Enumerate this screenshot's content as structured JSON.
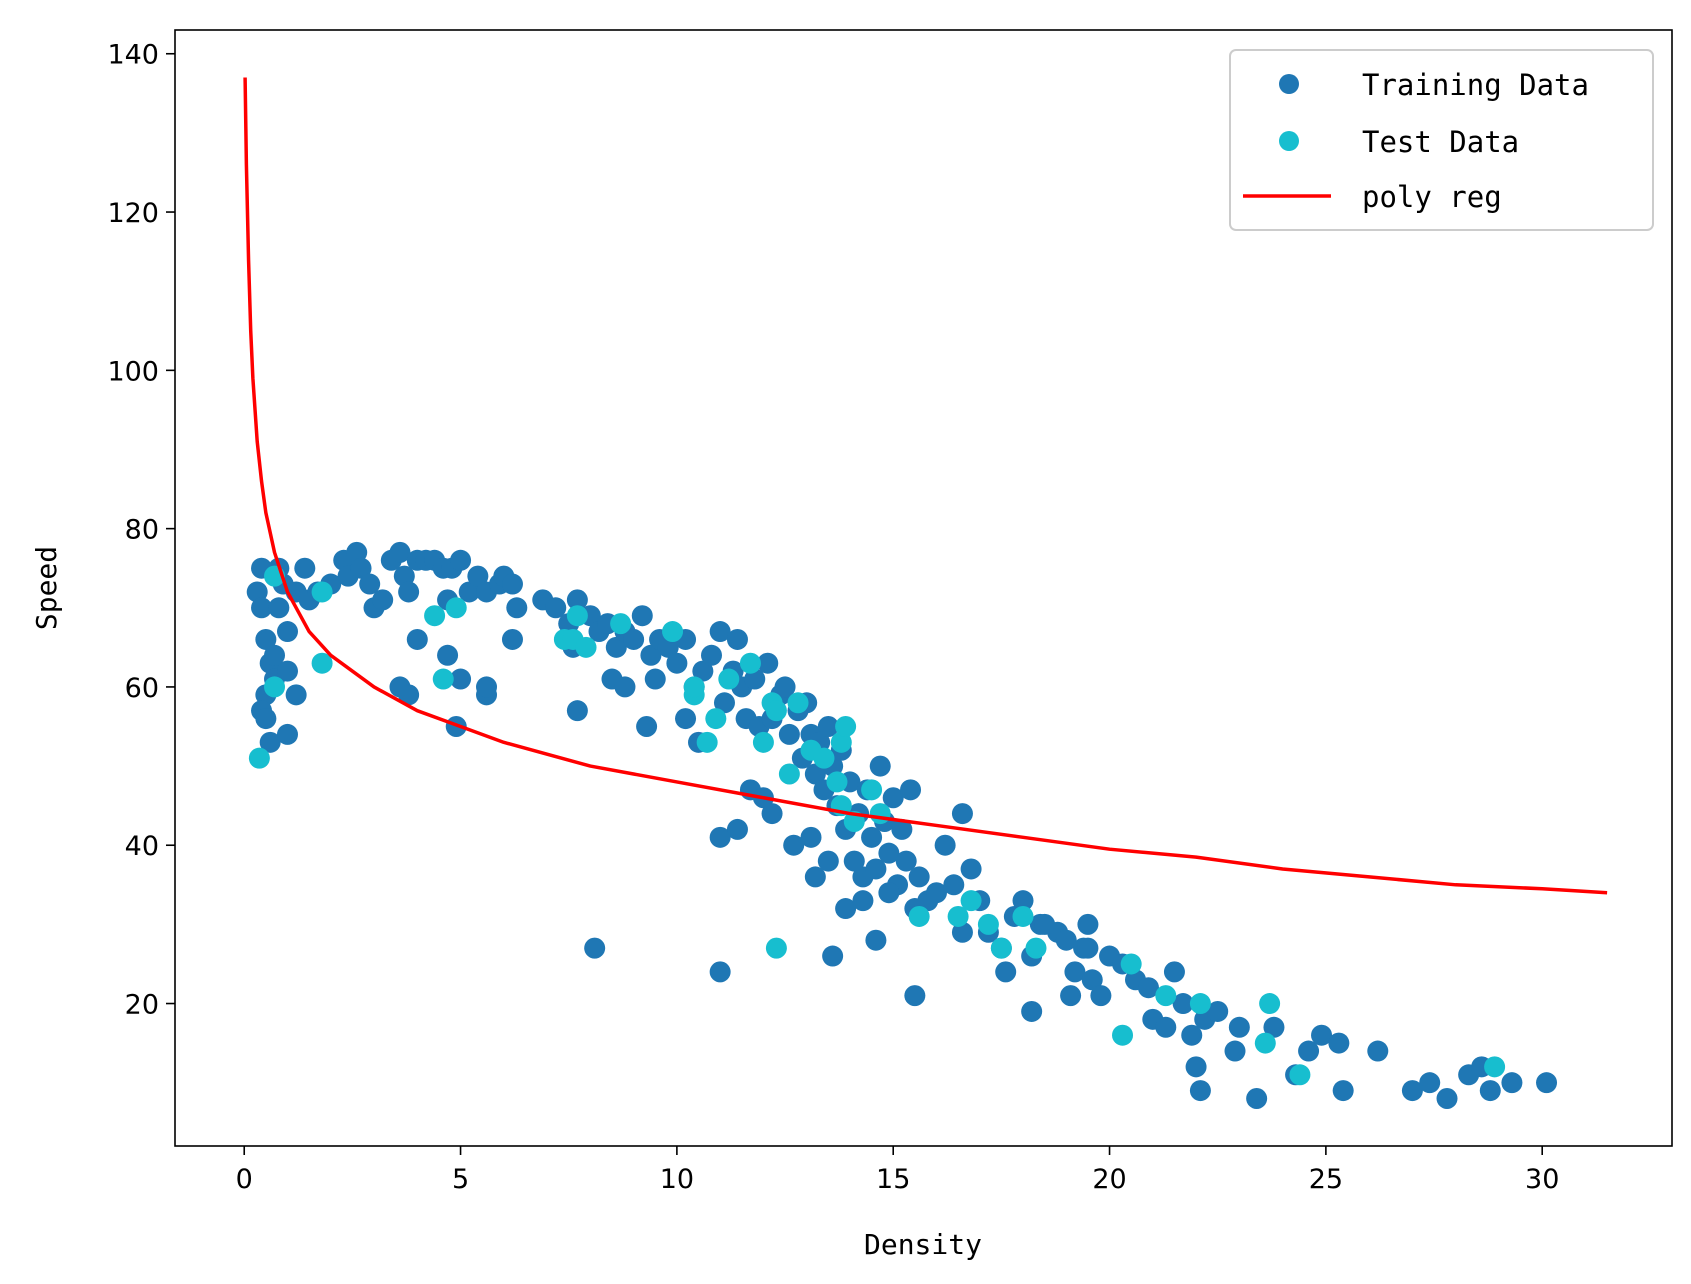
{
  "chart_data": {
    "type": "scatter",
    "title": "",
    "xlabel": "Density",
    "ylabel": "Speed",
    "xlim": [
      -1.6,
      33
    ],
    "ylim": [
      2,
      143
    ],
    "xticks": [
      0,
      5,
      10,
      15,
      20,
      25,
      30
    ],
    "yticks": [
      20,
      40,
      60,
      80,
      100,
      120,
      140
    ],
    "grid": false,
    "legend": {
      "position": "top-right",
      "entries": [
        "Training Data",
        "Test Data",
        "poly reg"
      ]
    },
    "colors": {
      "training": "#1f77b4",
      "test": "#17becf",
      "regression": "#ff0000"
    },
    "series": [
      {
        "name": "Training Data",
        "kind": "scatter",
        "points": [
          [
            0.3,
            72
          ],
          [
            0.4,
            75
          ],
          [
            0.4,
            70
          ],
          [
            0.5,
            66
          ],
          [
            0.5,
            59
          ],
          [
            0.4,
            57
          ],
          [
            0.5,
            56
          ],
          [
            0.6,
            63
          ],
          [
            0.6,
            53
          ],
          [
            0.7,
            64
          ],
          [
            0.7,
            61
          ],
          [
            0.8,
            75
          ],
          [
            0.8,
            70
          ],
          [
            0.9,
            73
          ],
          [
            1.0,
            62
          ],
          [
            1.0,
            67
          ],
          [
            1.0,
            54
          ],
          [
            1.2,
            59
          ],
          [
            1.2,
            72
          ],
          [
            1.4,
            75
          ],
          [
            1.5,
            71
          ],
          [
            1.7,
            72
          ],
          [
            2.0,
            73
          ],
          [
            2.3,
            76
          ],
          [
            2.4,
            74
          ],
          [
            2.6,
            77
          ],
          [
            2.7,
            75
          ],
          [
            2.9,
            73
          ],
          [
            3.0,
            70
          ],
          [
            3.2,
            71
          ],
          [
            3.4,
            76
          ],
          [
            3.6,
            77
          ],
          [
            3.7,
            74
          ],
          [
            3.8,
            72
          ],
          [
            4.0,
            76
          ],
          [
            4.2,
            76
          ],
          [
            4.4,
            76
          ],
          [
            4.6,
            75
          ],
          [
            4.7,
            71
          ],
          [
            4.8,
            75
          ],
          [
            5.0,
            76
          ],
          [
            5.2,
            72
          ],
          [
            5.4,
            74
          ],
          [
            5.6,
            72
          ],
          [
            5.9,
            73
          ],
          [
            6.0,
            74
          ],
          [
            6.2,
            73
          ],
          [
            6.3,
            70
          ],
          [
            6.9,
            71
          ],
          [
            7.2,
            70
          ],
          [
            7.5,
            68
          ],
          [
            7.6,
            65
          ],
          [
            7.7,
            71
          ],
          [
            8.0,
            69
          ],
          [
            8.2,
            67
          ],
          [
            8.4,
            68
          ],
          [
            8.6,
            65
          ],
          [
            8.8,
            67
          ],
          [
            9.0,
            66
          ],
          [
            9.2,
            69
          ],
          [
            9.4,
            64
          ],
          [
            9.5,
            61
          ],
          [
            9.6,
            66
          ],
          [
            9.8,
            65
          ],
          [
            10.0,
            63
          ],
          [
            10.2,
            66
          ],
          [
            10.4,
            60
          ],
          [
            10.6,
            62
          ],
          [
            10.8,
            64
          ],
          [
            11.0,
            67
          ],
          [
            11.1,
            58
          ],
          [
            11.3,
            62
          ],
          [
            11.4,
            66
          ],
          [
            11.5,
            60
          ],
          [
            11.6,
            56
          ],
          [
            11.8,
            61
          ],
          [
            11.9,
            55
          ],
          [
            12.1,
            63
          ],
          [
            12.2,
            56
          ],
          [
            12.4,
            59
          ],
          [
            12.5,
            60
          ],
          [
            12.6,
            54
          ],
          [
            12.8,
            57
          ],
          [
            12.9,
            51
          ],
          [
            13.0,
            58
          ],
          [
            13.1,
            54
          ],
          [
            13.2,
            49
          ],
          [
            13.3,
            53
          ],
          [
            13.4,
            47
          ],
          [
            13.5,
            55
          ],
          [
            13.6,
            50
          ],
          [
            13.7,
            45
          ],
          [
            13.8,
            52
          ],
          [
            13.9,
            42
          ],
          [
            14.0,
            48
          ],
          [
            14.1,
            38
          ],
          [
            14.2,
            44
          ],
          [
            14.3,
            36
          ],
          [
            14.4,
            47
          ],
          [
            14.5,
            41
          ],
          [
            14.6,
            37
          ],
          [
            14.7,
            50
          ],
          [
            14.8,
            43
          ],
          [
            14.9,
            39
          ],
          [
            15.0,
            46
          ],
          [
            15.1,
            35
          ],
          [
            15.2,
            42
          ],
          [
            15.3,
            38
          ],
          [
            15.4,
            47
          ],
          [
            15.6,
            36
          ],
          [
            15.8,
            33
          ],
          [
            16.0,
            34
          ],
          [
            16.2,
            40
          ],
          [
            16.4,
            35
          ],
          [
            16.6,
            44
          ],
          [
            16.8,
            37
          ],
          [
            17.0,
            33
          ],
          [
            17.2,
            29
          ],
          [
            17.5,
            27
          ],
          [
            17.8,
            31
          ],
          [
            18.0,
            33
          ],
          [
            18.4,
            30
          ],
          [
            18.8,
            29
          ],
          [
            19.0,
            28
          ],
          [
            19.2,
            24
          ],
          [
            19.4,
            27
          ],
          [
            19.5,
            30
          ],
          [
            19.6,
            23
          ],
          [
            19.8,
            21
          ],
          [
            20.0,
            26
          ],
          [
            20.3,
            25
          ],
          [
            20.6,
            23
          ],
          [
            20.9,
            22
          ],
          [
            21.0,
            18
          ],
          [
            21.3,
            17
          ],
          [
            21.5,
            24
          ],
          [
            21.7,
            20
          ],
          [
            21.9,
            16
          ],
          [
            22.0,
            12
          ],
          [
            22.2,
            18
          ],
          [
            22.5,
            19
          ],
          [
            22.9,
            14
          ],
          [
            23.0,
            17
          ],
          [
            23.4,
            8
          ],
          [
            23.8,
            17
          ],
          [
            24.3,
            11
          ],
          [
            24.6,
            14
          ],
          [
            24.9,
            16
          ],
          [
            25.3,
            15
          ],
          [
            25.4,
            9
          ],
          [
            26.2,
            14
          ],
          [
            27.0,
            9
          ],
          [
            27.4,
            10
          ],
          [
            27.8,
            8
          ],
          [
            28.3,
            11
          ],
          [
            28.6,
            12
          ],
          [
            28.8,
            9
          ],
          [
            29.3,
            10
          ],
          [
            30.1,
            10
          ],
          [
            22.1,
            9
          ],
          [
            8.1,
            27
          ],
          [
            11.0,
            24
          ],
          [
            13.6,
            26
          ],
          [
            14.6,
            28
          ],
          [
            15.5,
            21
          ],
          [
            18.2,
            19
          ],
          [
            19.1,
            21
          ],
          [
            3.6,
            60
          ],
          [
            3.8,
            59
          ],
          [
            4.0,
            66
          ],
          [
            4.7,
            64
          ],
          [
            5.0,
            61
          ],
          [
            4.9,
            55
          ],
          [
            5.6,
            59
          ],
          [
            5.6,
            60
          ],
          [
            6.2,
            66
          ],
          [
            7.7,
            57
          ],
          [
            8.5,
            61
          ],
          [
            8.8,
            60
          ],
          [
            9.3,
            55
          ],
          [
            10.2,
            56
          ],
          [
            10.5,
            53
          ],
          [
            11.0,
            41
          ],
          [
            11.4,
            42
          ],
          [
            11.7,
            47
          ],
          [
            12.0,
            46
          ],
          [
            12.2,
            44
          ],
          [
            12.7,
            40
          ],
          [
            13.1,
            41
          ],
          [
            13.2,
            36
          ],
          [
            13.5,
            38
          ],
          [
            13.9,
            32
          ],
          [
            14.3,
            33
          ],
          [
            14.9,
            34
          ],
          [
            15.5,
            32
          ],
          [
            16.6,
            29
          ],
          [
            17.6,
            24
          ],
          [
            18.2,
            26
          ],
          [
            18.5,
            30
          ],
          [
            19.5,
            27
          ]
        ]
      },
      {
        "name": "Test Data",
        "kind": "scatter",
        "points": [
          [
            0.35,
            51
          ],
          [
            0.7,
            60
          ],
          [
            0.7,
            74
          ],
          [
            1.8,
            63
          ],
          [
            1.8,
            72
          ],
          [
            4.4,
            69
          ],
          [
            4.6,
            61
          ],
          [
            4.9,
            70
          ],
          [
            7.4,
            66
          ],
          [
            7.6,
            66
          ],
          [
            7.7,
            69
          ],
          [
            7.9,
            65
          ],
          [
            8.7,
            68
          ],
          [
            9.9,
            67
          ],
          [
            10.4,
            59
          ],
          [
            10.4,
            60
          ],
          [
            10.7,
            53
          ],
          [
            10.9,
            56
          ],
          [
            11.2,
            61
          ],
          [
            11.7,
            63
          ],
          [
            12.0,
            53
          ],
          [
            12.2,
            58
          ],
          [
            12.3,
            57
          ],
          [
            12.3,
            27
          ],
          [
            12.6,
            49
          ],
          [
            12.8,
            58
          ],
          [
            13.1,
            52
          ],
          [
            13.4,
            51
          ],
          [
            13.7,
            48
          ],
          [
            13.8,
            45
          ],
          [
            13.8,
            53
          ],
          [
            13.9,
            55
          ],
          [
            14.1,
            43
          ],
          [
            14.5,
            47
          ],
          [
            14.7,
            44
          ],
          [
            15.6,
            31
          ],
          [
            16.5,
            31
          ],
          [
            16.8,
            33
          ],
          [
            17.2,
            30
          ],
          [
            17.5,
            27
          ],
          [
            18.0,
            31
          ],
          [
            18.3,
            27
          ],
          [
            20.3,
            16
          ],
          [
            20.5,
            25
          ],
          [
            21.3,
            21
          ],
          [
            22.1,
            20
          ],
          [
            23.6,
            15
          ],
          [
            23.7,
            20
          ],
          [
            24.4,
            11
          ],
          [
            28.9,
            12
          ]
        ]
      },
      {
        "name": "poly reg",
        "kind": "line",
        "points": [
          [
            0.02,
            137
          ],
          [
            0.05,
            126
          ],
          [
            0.1,
            114
          ],
          [
            0.15,
            105
          ],
          [
            0.2,
            99
          ],
          [
            0.3,
            91
          ],
          [
            0.4,
            86
          ],
          [
            0.5,
            82
          ],
          [
            0.7,
            77
          ],
          [
            1.0,
            72
          ],
          [
            1.5,
            67
          ],
          [
            2.0,
            64
          ],
          [
            3.0,
            60
          ],
          [
            4.0,
            57
          ],
          [
            5.0,
            55
          ],
          [
            6.0,
            53
          ],
          [
            8.0,
            50
          ],
          [
            10.0,
            48
          ],
          [
            12.0,
            46
          ],
          [
            14.0,
            44
          ],
          [
            16.0,
            42.5
          ],
          [
            18.0,
            41
          ],
          [
            20.0,
            39.5
          ],
          [
            22.0,
            38.5
          ],
          [
            24.0,
            37
          ],
          [
            26.0,
            36
          ],
          [
            28.0,
            35
          ],
          [
            30.0,
            34.5
          ],
          [
            31.5,
            34
          ]
        ]
      }
    ]
  }
}
